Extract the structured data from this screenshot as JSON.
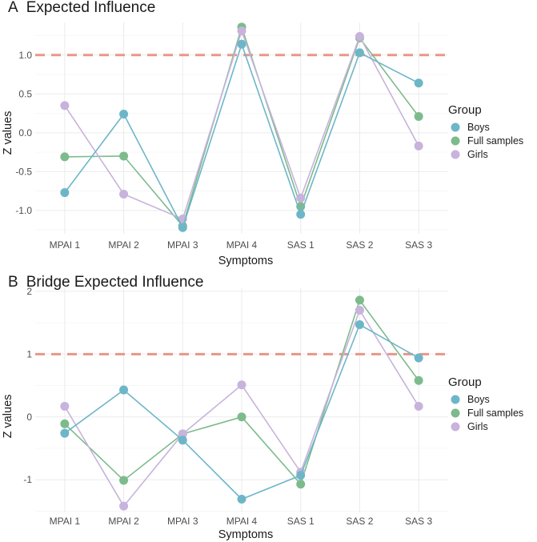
{
  "chart_data": [
    {
      "type": "line",
      "panel_label": "A",
      "title": "Expected Influence",
      "categories": [
        "MPAI 1",
        "MPAI 2",
        "MPAI 3",
        "MPAI 4",
        "SAS 1",
        "SAS 2",
        "SAS 3"
      ],
      "xlabel": "Symptoms",
      "ylabel": "Z values",
      "ylim": [
        -1.3,
        1.42
      ],
      "yticks": [
        -1.0,
        -0.5,
        0.0,
        0.5,
        1.0
      ],
      "ytick_labels": [
        "-1.0",
        "-0.5",
        "0.0",
        "0.5",
        "1.0"
      ],
      "reference_line": 1.0,
      "series": [
        {
          "name": "Full samples",
          "values": [
            -0.31,
            -0.3,
            -1.2,
            1.36,
            -0.95,
            1.22,
            0.21
          ]
        },
        {
          "name": "Girls",
          "values": [
            0.35,
            -0.79,
            -1.11,
            1.31,
            -0.84,
            1.24,
            -0.17
          ]
        },
        {
          "name": "Boys",
          "values": [
            -0.77,
            0.24,
            -1.22,
            1.14,
            -1.05,
            1.03,
            0.64
          ]
        }
      ]
    },
    {
      "type": "line",
      "panel_label": "B",
      "title": "Bridge Expected Influence",
      "categories": [
        "MPAI 1",
        "MPAI 2",
        "MPAI 3",
        "MPAI 4",
        "SAS 1",
        "SAS 2",
        "SAS 3"
      ],
      "xlabel": "Symptoms",
      "ylabel": "Z values",
      "ylim": [
        -1.52,
        2.05
      ],
      "yticks": [
        -1,
        0,
        1,
        2
      ],
      "ytick_labels": [
        "-1",
        "0",
        "1",
        "2"
      ],
      "reference_line": 1.0,
      "series": [
        {
          "name": "Full samples",
          "values": [
            -0.11,
            -1.01,
            -0.27,
            0.0,
            -1.07,
            1.86,
            0.58
          ]
        },
        {
          "name": "Girls",
          "values": [
            0.17,
            -1.42,
            -0.27,
            0.51,
            -0.88,
            1.7,
            0.17
          ]
        },
        {
          "name": "Boys",
          "values": [
            -0.26,
            0.43,
            -0.37,
            -1.31,
            -0.93,
            1.47,
            0.94
          ]
        }
      ]
    }
  ],
  "legend": {
    "title": "Group",
    "items": [
      {
        "label": "Boys",
        "color": "#6db6c8"
      },
      {
        "label": "Full samples",
        "color": "#7dbb8c"
      },
      {
        "label": "Girls",
        "color": "#c8b3dc"
      }
    ]
  },
  "colors": {
    "Boys": "#6db6c8",
    "Full samples": "#7dbb8c",
    "Girls": "#c8b3dc",
    "reference": "#e8968a"
  }
}
